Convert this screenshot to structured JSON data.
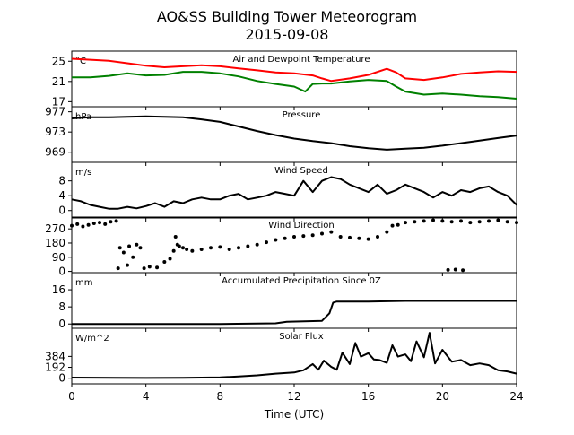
{
  "title": "AO&SS Building Tower Meteorogram",
  "subtitle": "2015-09-08",
  "xlabel": "Time (UTC)",
  "colors": {
    "temperature": "#ff0000",
    "dewpoint": "#008000",
    "default": "#000000"
  },
  "chart_data": [
    {
      "type": "line",
      "title": "Air and Dewpoint Temperature",
      "unit": "°C",
      "xlim": [
        0,
        24
      ],
      "ylim": [
        16,
        27
      ],
      "yticks": [
        17,
        21,
        25
      ],
      "xticks": [
        0,
        4,
        8,
        12,
        16,
        20,
        24
      ],
      "grid": false,
      "series": [
        {
          "color": "#ff0000",
          "x": [
            0,
            1,
            2,
            3,
            4,
            5,
            6,
            7,
            8,
            9,
            10,
            11,
            12,
            13,
            13.5,
            14,
            15,
            16,
            17,
            17.5,
            18,
            19,
            20,
            21,
            22,
            23,
            24
          ],
          "y": [
            25.5,
            25.3,
            25.1,
            24.6,
            24.1,
            23.8,
            24.0,
            24.2,
            24.0,
            23.6,
            23.2,
            22.8,
            22.6,
            22.2,
            21.6,
            21.1,
            21.6,
            22.3,
            23.5,
            22.8,
            21.6,
            21.3,
            21.8,
            22.5,
            22.8,
            23.0,
            22.9
          ]
        },
        {
          "color": "#008000",
          "x": [
            0,
            1,
            2,
            3,
            4,
            5,
            6,
            7,
            8,
            9,
            10,
            11,
            12,
            12.6,
            13,
            13.5,
            14,
            15,
            16,
            17,
            17.5,
            18,
            19,
            20,
            21,
            22,
            23,
            24
          ],
          "y": [
            21.8,
            21.8,
            22.1,
            22.6,
            22.2,
            22.3,
            22.9,
            22.9,
            22.6,
            22.0,
            21.1,
            20.5,
            20.0,
            19.0,
            20.5,
            20.6,
            20.6,
            21.0,
            21.3,
            21.1,
            20.0,
            19.0,
            18.4,
            18.6,
            18.4,
            18.1,
            17.9,
            17.6
          ]
        }
      ]
    },
    {
      "type": "line",
      "title": "Pressure",
      "unit": "hPa",
      "xlim": [
        0,
        24
      ],
      "ylim": [
        967,
        978
      ],
      "yticks": [
        969,
        973,
        977
      ],
      "xticks": [
        0,
        4,
        8,
        12,
        16,
        20,
        24
      ],
      "grid": false,
      "series": [
        {
          "color": "#000000",
          "x": [
            0,
            1,
            2,
            3,
            4,
            5,
            6,
            7,
            8,
            9,
            10,
            11,
            12,
            13,
            14,
            15,
            16,
            17,
            18,
            19,
            20,
            21,
            22,
            23,
            24
          ],
          "y": [
            975.7,
            975.9,
            975.9,
            976.0,
            976.1,
            976.0,
            975.9,
            975.5,
            975.0,
            974.1,
            973.2,
            972.4,
            971.7,
            971.2,
            970.8,
            970.2,
            969.8,
            969.5,
            969.7,
            969.9,
            970.3,
            970.8,
            971.3,
            971.8,
            972.3
          ]
        }
      ]
    },
    {
      "type": "line",
      "title": "Wind Speed",
      "unit": "m/s",
      "xlim": [
        0,
        24
      ],
      "ylim": [
        -2,
        13
      ],
      "yticks": [
        0,
        4,
        8
      ],
      "xticks": [
        0,
        4,
        8,
        12,
        16,
        20,
        24
      ],
      "grid": false,
      "series": [
        {
          "color": "#000000",
          "x": [
            0,
            0.5,
            1,
            1.5,
            2,
            2.5,
            3,
            3.5,
            4,
            4.5,
            5,
            5.5,
            6,
            6.5,
            7,
            7.5,
            8,
            8.5,
            9,
            9.5,
            10,
            10.5,
            11,
            11.5,
            12,
            12.5,
            13,
            13.5,
            14,
            14.5,
            15,
            15.5,
            16,
            16.5,
            17,
            17.5,
            18,
            18.5,
            19,
            19.5,
            20,
            20.5,
            21,
            21.5,
            22,
            22.5,
            23,
            23.5,
            24
          ],
          "y": [
            3,
            2.5,
            1.5,
            1,
            0.5,
            0.5,
            1,
            0.6,
            1.2,
            2,
            1,
            2.5,
            2,
            3,
            3.5,
            3,
            3,
            4,
            4.5,
            3,
            3.5,
            4,
            5,
            4.5,
            4,
            8,
            5,
            8,
            9,
            8.5,
            7,
            6,
            5,
            7,
            4.5,
            5.5,
            7,
            6,
            5,
            3.5,
            5,
            4,
            5.5,
            5,
            6,
            6.5,
            5,
            4,
            1.5
          ]
        }
      ]
    },
    {
      "type": "scatter",
      "title": "Wind Direction",
      "xlim": [
        0,
        24
      ],
      "ylim": [
        -8,
        345
      ],
      "yticks": [
        0,
        90,
        180,
        270
      ],
      "xticks": [
        0,
        4,
        8,
        12,
        16,
        20,
        24
      ],
      "grid": false,
      "series": [
        {
          "color": "#000000",
          "x": [
            0,
            0.3,
            0.6,
            0.9,
            1.2,
            1.5,
            1.8,
            2.1,
            2.4,
            2.5,
            2.6,
            2.8,
            3.0,
            3.1,
            3.3,
            3.5,
            3.7,
            3.9,
            4.2,
            4.6,
            5.0,
            5.3,
            5.5,
            5.6,
            5.7,
            5.8,
            6.0,
            6.2,
            6.5,
            7,
            7.5,
            8,
            8.5,
            9,
            9.5,
            10,
            10.5,
            11,
            11.5,
            12,
            12.5,
            13,
            13.5,
            14,
            14.5,
            15,
            15.5,
            16,
            16.5,
            17,
            17.3,
            17.6,
            18,
            18.5,
            19,
            19.5,
            20,
            20.5,
            21,
            21.5,
            22,
            22.5,
            23,
            23.5,
            24,
            20.3,
            20.7,
            21.1
          ],
          "y": [
            290,
            300,
            285,
            295,
            305,
            310,
            300,
            315,
            320,
            20,
            150,
            120,
            40,
            160,
            90,
            170,
            150,
            20,
            30,
            25,
            60,
            80,
            130,
            220,
            170,
            160,
            150,
            140,
            130,
            140,
            150,
            155,
            140,
            150,
            160,
            170,
            185,
            200,
            210,
            220,
            225,
            230,
            240,
            250,
            220,
            215,
            210,
            205,
            220,
            250,
            290,
            295,
            310,
            315,
            320,
            325,
            320,
            315,
            320,
            310,
            315,
            320,
            325,
            315,
            310,
            10,
            12,
            8
          ]
        }
      ]
    },
    {
      "type": "line",
      "title": "Accumulated Precipitation Since 0Z",
      "unit": "mm",
      "xlim": [
        0,
        24
      ],
      "ylim": [
        -2,
        24
      ],
      "yticks": [
        0,
        8,
        16
      ],
      "xticks": [
        0,
        4,
        8,
        12,
        16,
        20,
        24
      ],
      "grid": false,
      "series": [
        {
          "color": "#000000",
          "x": [
            0,
            8,
            11,
            11.6,
            13.5,
            13.9,
            14.1,
            14.3,
            16,
            18,
            20,
            22,
            24
          ],
          "y": [
            0,
            0,
            0.3,
            1,
            1.5,
            5,
            10,
            10.5,
            10.5,
            10.8,
            10.8,
            10.8,
            10.8
          ]
        }
      ]
    },
    {
      "type": "line",
      "title": "Solar Flux",
      "unit": "W/m^2",
      "xlim": [
        0,
        24
      ],
      "ylim": [
        -100,
        880
      ],
      "yticks": [
        0,
        192,
        384
      ],
      "xticks": [
        0,
        4,
        8,
        12,
        16,
        20,
        24
      ],
      "grid": false,
      "series": [
        {
          "color": "#000000",
          "x": [
            0,
            4,
            6,
            8,
            9,
            10,
            11,
            12,
            12.5,
            13,
            13.3,
            13.6,
            14,
            14.3,
            14.6,
            15,
            15.3,
            15.6,
            16,
            16.3,
            16.6,
            17,
            17.3,
            17.6,
            18,
            18.3,
            18.6,
            19,
            19.3,
            19.6,
            20,
            20.5,
            21,
            21.5,
            22,
            22.5,
            23,
            23.5,
            24
          ],
          "y": [
            10,
            5,
            8,
            15,
            30,
            50,
            80,
            100,
            140,
            250,
            150,
            310,
            200,
            150,
            450,
            250,
            620,
            380,
            440,
            330,
            320,
            270,
            580,
            380,
            420,
            300,
            650,
            370,
            800,
            260,
            500,
            290,
            320,
            230,
            260,
            230,
            140,
            120,
            80
          ]
        }
      ]
    }
  ]
}
